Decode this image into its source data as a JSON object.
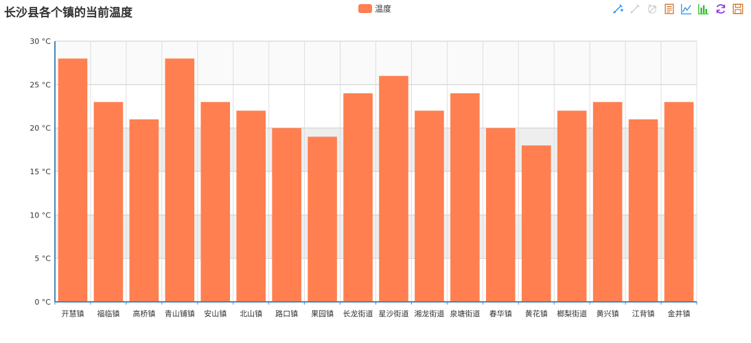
{
  "chart_data": {
    "type": "bar",
    "title": "长沙县各个镇的当前温度",
    "legend": [
      {
        "name": "温度",
        "color": "#FF7F50"
      }
    ],
    "categories": [
      "开慧镇",
      "福临镇",
      "高桥镇",
      "青山铺镇",
      "安山镇",
      "北山镇",
      "路口镇",
      "果园镇",
      "长龙街道",
      "星沙街道",
      "湘龙街道",
      "泉塘街道",
      "春华镇",
      "黄花镇",
      "榔梨街道",
      "黄兴镇",
      "江背镇",
      "金井镇"
    ],
    "series": [
      {
        "name": "温度",
        "values": [
          28,
          23,
          21,
          28,
          23,
          22,
          20,
          19,
          24,
          26,
          22,
          24,
          20,
          18,
          22,
          23,
          21,
          23
        ]
      }
    ],
    "ylim": [
      0,
      30
    ],
    "yticks": [
      0,
      5,
      10,
      15,
      20,
      25,
      30
    ],
    "yunit": " °C",
    "ytick_labels": [
      "0 °C",
      "5 °C",
      "10 °C",
      "15 °C",
      "20 °C",
      "25 °C",
      "30 °C"
    ],
    "xlabel": "",
    "ylabel": "",
    "grid": true,
    "bar_color": "#FF7F50"
  },
  "toolbox": [
    {
      "name": "zoom-icon",
      "color": "#1E90FF"
    },
    {
      "name": "zoom-reset-icon",
      "color": "#cccccc"
    },
    {
      "name": "restore-zoom-icon",
      "color": "#cccccc"
    },
    {
      "name": "data-view-icon",
      "color": "#D2691E"
    },
    {
      "name": "line-chart-icon",
      "color": "#1E90FF"
    },
    {
      "name": "bar-chart-icon",
      "color": "#22bb22"
    },
    {
      "name": "refresh-icon",
      "color": "#8A2BE2"
    },
    {
      "name": "save-image-icon",
      "color": "#D2691E"
    }
  ]
}
